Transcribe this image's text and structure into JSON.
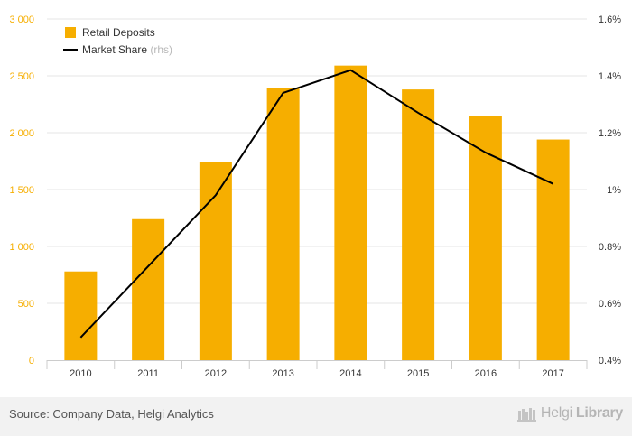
{
  "chart_data": {
    "type": "bar+line",
    "categories": [
      "2010",
      "2011",
      "2012",
      "2013",
      "2014",
      "2015",
      "2016",
      "2017"
    ],
    "series": [
      {
        "name": "Retail Deposits",
        "type": "bar",
        "axis": "left",
        "color": "#f6ae00",
        "values": [
          780,
          1240,
          1740,
          2390,
          2590,
          2380,
          2150,
          1940
        ]
      },
      {
        "name": "Market Share",
        "legend_suffix": "(rhs)",
        "type": "line",
        "axis": "right",
        "color": "#000000",
        "values": [
          0.0048,
          0.0073,
          0.0098,
          0.0134,
          0.0142,
          0.0127,
          0.0113,
          0.0102
        ]
      }
    ],
    "y_left": {
      "min": 0,
      "max": 3000,
      "ticks": [
        0,
        500,
        1000,
        1500,
        2000,
        2500,
        3000
      ],
      "tick_labels": [
        "0",
        "500",
        "1 000",
        "1 500",
        "2 000",
        "2 500",
        "3 000"
      ],
      "tick_color": "#f6ae00"
    },
    "y_right": {
      "min": 0.004,
      "max": 0.016,
      "ticks": [
        0.004,
        0.006,
        0.008,
        0.01,
        0.012,
        0.014,
        0.016
      ],
      "tick_labels": [
        "0.4%",
        "0.6%",
        "0.8%",
        "1%",
        "1.2%",
        "1.4%",
        "1.6%"
      ]
    },
    "grid": true,
    "legend_position": "top-left",
    "title": "",
    "xlabel": "",
    "ylabel": ""
  },
  "footer": {
    "source": "Source: Company Data, Helgi Analytics",
    "brand_light": "Helgi",
    "brand_bold": "Library"
  }
}
